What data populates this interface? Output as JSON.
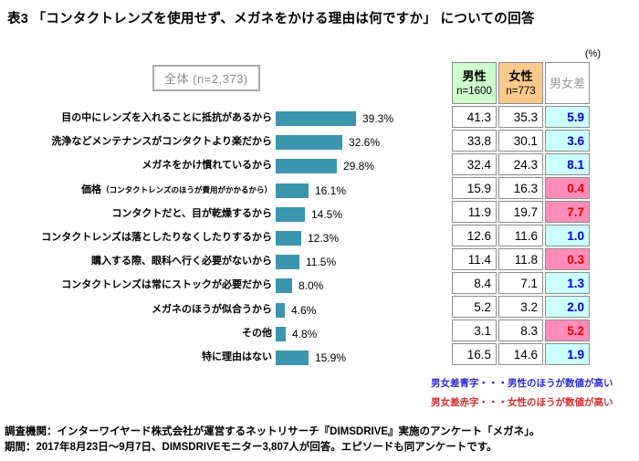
{
  "title": "表3 「コンタクトレンズを使用せず、メガネをかける理由は何ですか」 についての回答",
  "unit_label": "(%)",
  "overall_box_label": "全体 (n=2,373)",
  "table_header": {
    "male": "男性",
    "male_sub": "n=1600",
    "female": "女性",
    "female_sub": "n=773",
    "diff": "男女差"
  },
  "legend": {
    "blue": "男女差青字・・・男性のほうが数値が高い",
    "red": "男女差赤字・・・女性のほうが数値が高い"
  },
  "footer": {
    "line1": "調査機関：インターワイヤード株式会社が運営するネットリサーチ『DIMSDRIVE』実施のアンケート「メガネ」。",
    "line2": "期間：2017年8月23日～9月7日、DIMSDRIVEモニター3,807人が回答。エピソードも同アンケートです。"
  },
  "colors": {
    "bar": "#3b95ad",
    "male_header_bg": "#ccffcc",
    "female_header_bg": "#fbca8b",
    "diff_blue_bg": "#ccffff",
    "diff_pink_bg": "#ff8cba",
    "diff_blue_text": "#0000e6",
    "diff_red_text": "#e60000"
  },
  "rows": [
    {
      "label": "目の中にレンズを入れることに抵抗があるから",
      "note": "",
      "value": 39.3,
      "display": "39.3%",
      "male": "41.3",
      "female": "35.3",
      "diff": "5.9",
      "diff_higher": "male"
    },
    {
      "label": "洗浄などメンテナンスがコンタクトより楽だから",
      "note": "",
      "value": 32.6,
      "display": "32.6%",
      "male": "33.8",
      "female": "30.1",
      "diff": "3.6",
      "diff_higher": "male"
    },
    {
      "label": "メガネをかけ慣れているから",
      "note": "",
      "value": 29.8,
      "display": "29.8%",
      "male": "32.4",
      "female": "24.3",
      "diff": "8.1",
      "diff_higher": "male"
    },
    {
      "label": "価格",
      "note": "（コンタクトレンズのほうが費用がかかるから）",
      "value": 16.1,
      "display": "16.1%",
      "male": "15.9",
      "female": "16.3",
      "diff": "0.4",
      "diff_higher": "female"
    },
    {
      "label": "コンタクトだと、目が乾燥するから",
      "note": "",
      "value": 14.5,
      "display": "14.5%",
      "male": "11.9",
      "female": "19.7",
      "diff": "7.7",
      "diff_higher": "female"
    },
    {
      "label": "コンタクトレンズは落としたりなくしたりするから",
      "note": "",
      "value": 12.3,
      "display": "12.3%",
      "male": "12.6",
      "female": "11.6",
      "diff": "1.0",
      "diff_higher": "male"
    },
    {
      "label": "購入する際、眼科へ行く必要がないから",
      "note": "",
      "value": 11.5,
      "display": "11.5%",
      "male": "11.4",
      "female": "11.8",
      "diff": "0.3",
      "diff_higher": "female"
    },
    {
      "label": "コンタクトレンズは常にストックが必要だから",
      "note": "",
      "value": 8.0,
      "display": "8.0%",
      "male": "8.4",
      "female": "7.1",
      "diff": "1.3",
      "diff_higher": "male"
    },
    {
      "label": "メガネのほうが似合うから",
      "note": "",
      "value": 4.6,
      "display": "4.6%",
      "male": "5.2",
      "female": "3.2",
      "diff": "2.0",
      "diff_higher": "male"
    },
    {
      "label": "その他",
      "note": "",
      "value": 4.8,
      "display": "4.8%",
      "male": "3.1",
      "female": "8.3",
      "diff": "5.2",
      "diff_higher": "female"
    },
    {
      "label": "特に理由はない",
      "note": "",
      "value": 15.9,
      "display": "15.9%",
      "male": "16.5",
      "female": "14.6",
      "diff": "1.9",
      "diff_higher": "male"
    }
  ],
  "chart_data": {
    "type": "bar",
    "orientation": "horizontal",
    "title": "表3 「コンタクトレンズを使用せず、メガネをかける理由は何ですか」 についての回答",
    "unit": "%",
    "categories": [
      "目の中にレンズを入れることに抵抗があるから",
      "洗浄などメンテナンスがコンタクトより楽だから",
      "メガネをかけ慣れているから",
      "価格（コンタクトレンズのほうが費用がかかるから）",
      "コンタクトだと、目が乾燥するから",
      "コンタクトレンズは落としたりなくしたりするから",
      "購入する際、眼科へ行く必要がないから",
      "コンタクトレンズは常にストックが必要だから",
      "メガネのほうが似合うから",
      "その他",
      "特に理由はない"
    ],
    "series": [
      {
        "name": "全体 (n=2,373)",
        "values": [
          39.3,
          32.6,
          29.8,
          16.1,
          14.5,
          12.3,
          11.5,
          8.0,
          4.6,
          4.8,
          15.9
        ]
      },
      {
        "name": "男性 n=1600",
        "values": [
          41.3,
          33.8,
          32.4,
          15.9,
          11.9,
          12.6,
          11.4,
          8.4,
          5.2,
          3.1,
          16.5
        ]
      },
      {
        "name": "女性 n=773",
        "values": [
          35.3,
          30.1,
          24.3,
          16.3,
          19.7,
          11.6,
          11.8,
          7.1,
          3.2,
          8.3,
          14.6
        ]
      }
    ],
    "diff": {
      "name": "男女差",
      "values": [
        5.9,
        3.6,
        8.1,
        0.4,
        7.7,
        1.0,
        0.3,
        1.3,
        2.0,
        5.2,
        1.9
      ],
      "higher": [
        "male",
        "male",
        "male",
        "female",
        "female",
        "male",
        "female",
        "male",
        "male",
        "female",
        "male"
      ]
    },
    "xlim": [
      0,
      45
    ],
    "grid": false,
    "legend_position": "none"
  }
}
